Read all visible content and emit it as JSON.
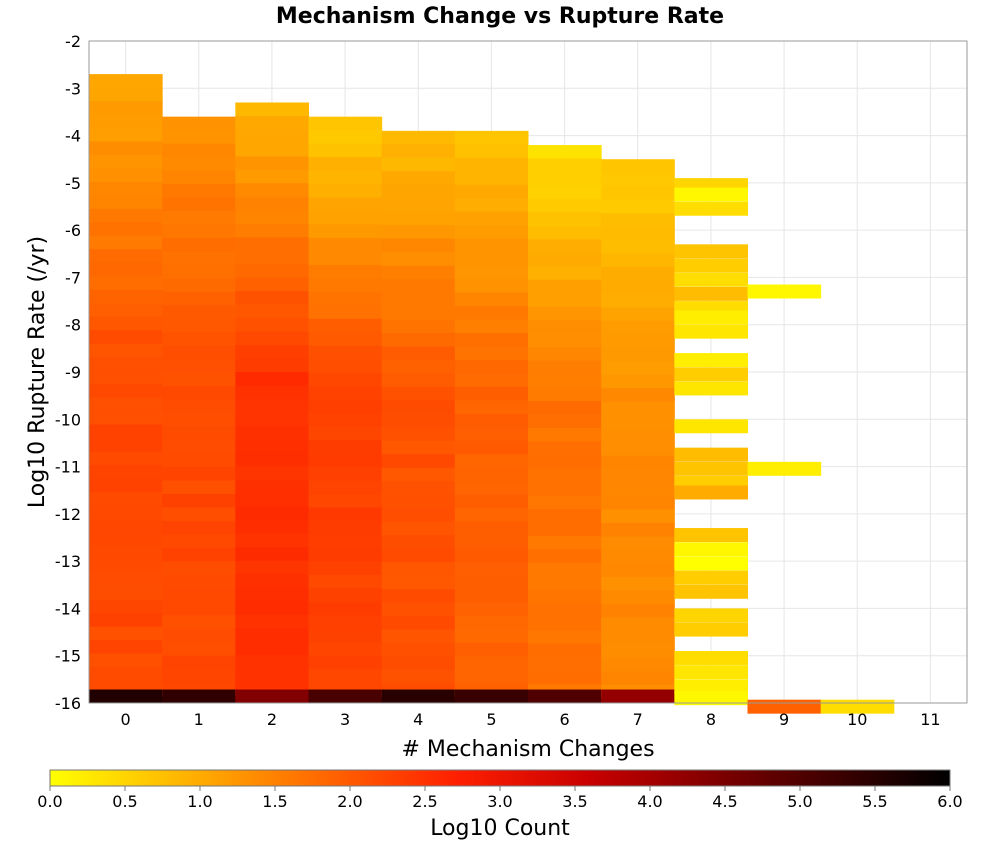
{
  "chart_data": {
    "type": "heatmap",
    "title": "Mechanism Change vs Rupture Rate",
    "xlabel": "# Mechanism Changes",
    "ylabel": "Log10 Rupture Rate (/yr)",
    "xlim": [
      -0.5,
      11.5
    ],
    "ylim": [
      -16,
      -2
    ],
    "x_ticks": [
      "0",
      "1",
      "2",
      "3",
      "4",
      "5",
      "6",
      "7",
      "8",
      "9",
      "10",
      "11"
    ],
    "y_ticks": [
      "-2",
      "-3",
      "-4",
      "-5",
      "-6",
      "-7",
      "-8",
      "-9",
      "-10",
      "-11",
      "-12",
      "-13",
      "-14",
      "-15",
      "-16"
    ],
    "grid": true,
    "colorbar": {
      "label": "Log10 Count",
      "range": [
        0,
        6
      ],
      "ticks": [
        "0.0",
        "0.5",
        "1.0",
        "1.5",
        "2.0",
        "2.5",
        "3.0",
        "3.5",
        "4.0",
        "4.5",
        "5.0",
        "5.5",
        "6.0"
      ],
      "colors": [
        "#ffff00",
        "#ff8000",
        "#ff1a00",
        "#b40000",
        "#400000",
        "#000000"
      ]
    },
    "cell_height": 0.285,
    "column_ranges": [
      {
        "x": 0,
        "top": -2.7,
        "lo": 1.0,
        "hi": 2.2,
        "bottom_value": 5.6
      },
      {
        "x": 1,
        "top": -3.6,
        "lo": 1.3,
        "hi": 2.2,
        "bottom_value": 5.4
      },
      {
        "x": 2,
        "top": -3.3,
        "lo": 0.9,
        "hi": 2.5,
        "bottom_value": 4.4
      },
      {
        "x": 3,
        "top": -3.6,
        "lo": 0.6,
        "hi": 2.3,
        "bottom_value": 5.1
      },
      {
        "x": 4,
        "top": -3.9,
        "lo": 0.8,
        "hi": 2.1,
        "bottom_value": 5.5
      },
      {
        "x": 5,
        "top": -3.9,
        "lo": 0.7,
        "hi": 1.9,
        "bottom_value": 5.3
      },
      {
        "x": 6,
        "top": -4.2,
        "lo": 0.4,
        "hi": 1.7,
        "bottom_value": 5.0
      },
      {
        "x": 7,
        "top": -4.5,
        "lo": 0.6,
        "hi": 1.4,
        "bottom_value": 4.2
      }
    ],
    "cells_x8": [
      {
        "y": -4.9,
        "v": 0.5
      },
      {
        "y": -5.1,
        "v": 0.1
      },
      {
        "y": -5.4,
        "v": 0.4
      },
      {
        "y": -6.3,
        "v": 0.7
      },
      {
        "y": -6.6,
        "v": 0.6
      },
      {
        "y": -6.9,
        "v": 0.4
      },
      {
        "y": -7.2,
        "v": 0.8
      },
      {
        "y": -7.5,
        "v": 0.4
      },
      {
        "y": -7.7,
        "v": 0.2
      },
      {
        "y": -8.0,
        "v": 0.3
      },
      {
        "y": -8.6,
        "v": 0.2
      },
      {
        "y": -8.9,
        "v": 0.6
      },
      {
        "y": -9.2,
        "v": 0.3
      },
      {
        "y": -10.0,
        "v": 0.3
      },
      {
        "y": -10.6,
        "v": 0.8
      },
      {
        "y": -10.9,
        "v": 0.7
      },
      {
        "y": -11.2,
        "v": 0.6
      },
      {
        "y": -11.4,
        "v": 1.0
      },
      {
        "y": -12.3,
        "v": 0.7
      },
      {
        "y": -12.6,
        "v": 0.1
      },
      {
        "y": -12.9,
        "v": 0.0
      },
      {
        "y": -13.2,
        "v": 0.6
      },
      {
        "y": -13.5,
        "v": 0.7
      },
      {
        "y": -14.0,
        "v": 0.5
      },
      {
        "y": -14.3,
        "v": 0.6
      },
      {
        "y": -14.9,
        "v": 0.4
      },
      {
        "y": -15.2,
        "v": 0.3
      },
      {
        "y": -15.5,
        "v": 0.2
      },
      {
        "y": -15.75,
        "v": 0.1
      }
    ],
    "cells_other": [
      {
        "x": 9,
        "y": -7.15,
        "v": 0.1
      },
      {
        "x": 9,
        "y": -10.9,
        "v": 0.2
      },
      {
        "x": 9,
        "y": -15.93,
        "v": 1.9
      },
      {
        "x": 10,
        "y": -15.93,
        "v": 0.4
      }
    ]
  }
}
